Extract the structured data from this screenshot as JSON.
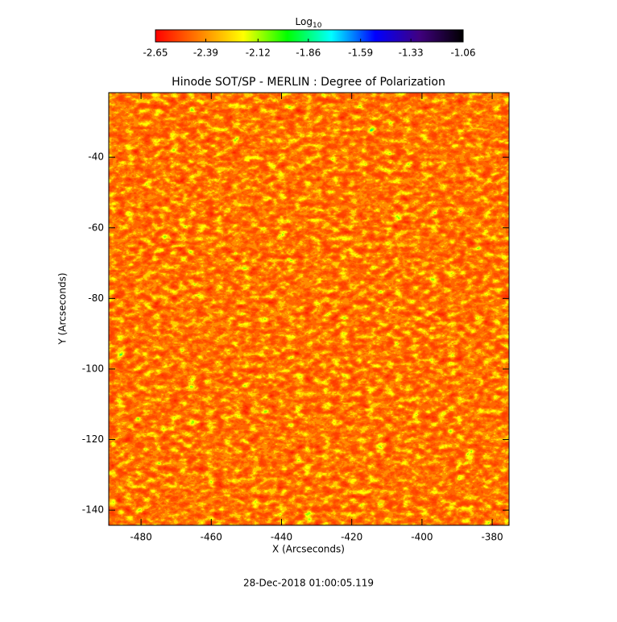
{
  "chart_data": {
    "type": "heatmap",
    "title": "Hinode SOT/SP - MERLIN : Degree of Polarization",
    "xlabel": "X (Arcseconds)",
    "ylabel": "Y (Arcseconds)",
    "xlim": [
      -489.2,
      -375.2
    ],
    "ylim": [
      -144.3,
      -21.7
    ],
    "xticks": [
      -480,
      -460,
      -440,
      -420,
      -400,
      -380
    ],
    "yticks": [
      -40,
      -60,
      -80,
      -100,
      -120,
      -140
    ],
    "colorbar_label": "Log",
    "colorbar_label_sub": "10",
    "clim": [
      -2.65,
      -1.06
    ],
    "cticks": [
      -2.65,
      -2.39,
      -2.12,
      -1.86,
      -1.59,
      -1.33,
      -1.06
    ],
    "colormap": [
      "#ff0000",
      "#ff8000",
      "#ffff00",
      "#00ff00",
      "#00ffff",
      "#0000ff",
      "#400080",
      "#000000"
    ],
    "footer": "28-Dec-2018 01:00:05.119"
  }
}
